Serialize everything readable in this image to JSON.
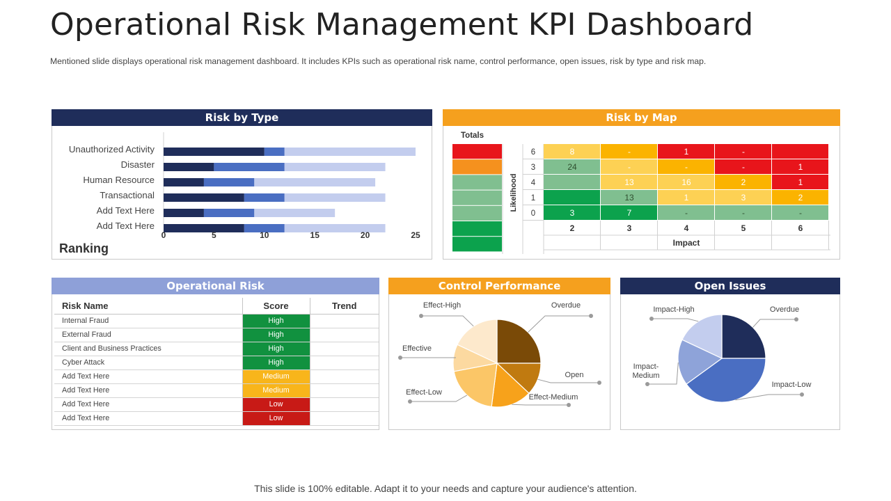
{
  "header": {
    "title": "Operational Risk Management KPI Dashboard",
    "subtitle": "Mentioned slide displays operational risk management dashboard. It includes KPIs such as operational risk name, control performance, open issues, risk by type and risk map."
  },
  "footer": "This slide is 100% editable. Adapt it to your needs and capture your audience's attention.",
  "colors": {
    "navy": "#1f2d5a",
    "orange": "#f5a01e",
    "periwinkle": "#8ea0d8",
    "high_green": "#11913f",
    "medium_amber": "#f8b51b",
    "low_red": "#c81a16"
  },
  "panels": {
    "risk_by_type": "Risk by Type",
    "risk_by_map": "Risk by Map",
    "operational_risk": "Operational Risk",
    "control_performance": "Control Performance",
    "open_issues": "Open Issues"
  },
  "operational_risk": {
    "headers": [
      "Risk Name",
      "Score",
      "Trend"
    ],
    "rows": [
      {
        "name": "Internal Fraud",
        "score": "High",
        "color": "#11913f"
      },
      {
        "name": "External Fraud",
        "score": "High",
        "color": "#11913f"
      },
      {
        "name": "Client and Business Practices",
        "score": "High",
        "color": "#11913f"
      },
      {
        "name": "Cyber Attack",
        "score": "High",
        "color": "#11913f"
      },
      {
        "name": "Add Text Here",
        "score": "Medium",
        "color": "#f8b51b"
      },
      {
        "name": "Add Text Here",
        "score": "Medium",
        "color": "#f8b51b"
      },
      {
        "name": "Add Text Here",
        "score": "Low",
        "color": "#c81a16"
      },
      {
        "name": "Add Text Here",
        "score": "Low",
        "color": "#c81a16"
      }
    ]
  },
  "chart_data": [
    {
      "type": "bar",
      "orientation": "horizontal",
      "stacked": true,
      "title": "Risk by Type",
      "categories": [
        "Unauthorized Activity",
        "Disaster",
        "Human Resource",
        "Transactional",
        "Add Text Here",
        "Add Text Here"
      ],
      "series": [
        {
          "values": [
            10,
            5,
            4,
            8,
            4,
            8
          ],
          "color": "#1f2d5a"
        },
        {
          "values": [
            2,
            7,
            5,
            4,
            5,
            4
          ],
          "color": "#4a6ec2"
        },
        {
          "values": [
            13,
            10,
            12,
            10,
            8,
            10
          ],
          "color": "#c3cdee"
        }
      ],
      "xlim": [
        0,
        25
      ],
      "xticks": [
        0,
        5,
        10,
        15,
        20,
        25
      ],
      "annotation": "Ranking"
    },
    {
      "type": "heatmap",
      "title": "Risk by Map",
      "totals_label": "Totals",
      "totals_colors": [
        "#e8151b",
        "#f5911e",
        "#80bf90",
        "#80bf90",
        "#80bf90",
        "#0ca24d",
        "#0ca24d"
      ],
      "ylabel": "Likelihood",
      "xlabel": "Impact",
      "y_labels": [
        "6",
        "3",
        "4",
        "1",
        "0"
      ],
      "x_labels": [
        "2",
        "3",
        "4",
        "5",
        "6"
      ],
      "cells": [
        [
          {
            "v": "8",
            "c": "#fdd154"
          },
          {
            "v": "-",
            "c": "#fbb300"
          },
          {
            "v": "1",
            "c": "#e8151b"
          },
          {
            "v": "-",
            "c": "#e8151b"
          },
          {
            "v": "",
            "c": "#e8151b"
          }
        ],
        [
          {
            "v": "24",
            "c": "#80bf90"
          },
          {
            "v": "-",
            "c": "#fdd154"
          },
          {
            "v": "-",
            "c": "#fbb300"
          },
          {
            "v": "-",
            "c": "#e8151b"
          },
          {
            "v": "1",
            "c": "#e8151b"
          }
        ],
        [
          {
            "v": "",
            "c": "#80bf90"
          },
          {
            "v": "13",
            "c": "#fdd154"
          },
          {
            "v": "16",
            "c": "#fdd154"
          },
          {
            "v": "2",
            "c": "#fbb300"
          },
          {
            "v": "1",
            "c": "#e8151b"
          }
        ],
        [
          {
            "v": "",
            "c": "#0ca24d"
          },
          {
            "v": "13",
            "c": "#80bf90"
          },
          {
            "v": "1",
            "c": "#fdd154"
          },
          {
            "v": "3",
            "c": "#fdd154"
          },
          {
            "v": "2",
            "c": "#fbb300"
          }
        ],
        [
          {
            "v": "3",
            "c": "#0ca24d"
          },
          {
            "v": "7",
            "c": "#0ca24d"
          },
          {
            "v": "-",
            "c": "#80bf90"
          },
          {
            "v": "-",
            "c": "#80bf90"
          },
          {
            "v": "-",
            "c": "#80bf90"
          }
        ]
      ]
    },
    {
      "type": "pie",
      "title": "Control Performance",
      "slices": [
        {
          "label": "Overdue",
          "value": 25,
          "color": "#7a4a07"
        },
        {
          "label": "Open",
          "value": 12,
          "color": "#c07a10"
        },
        {
          "label": "Effect-Medium",
          "value": 15,
          "color": "#f7a21b"
        },
        {
          "label": "Effect-Low",
          "value": 20,
          "color": "#fbc667"
        },
        {
          "label": "Effective",
          "value": 10,
          "color": "#fcd9a0"
        },
        {
          "label": "Effect-High",
          "value": 18,
          "color": "#fde9cc"
        }
      ]
    },
    {
      "type": "pie",
      "title": "Open Issues",
      "slices": [
        {
          "label": "Overdue",
          "value": 25,
          "color": "#1f2d5a"
        },
        {
          "label": "Impact-Low",
          "value": 40,
          "color": "#4a6ec2"
        },
        {
          "label": "Impact-Medium",
          "value": 17,
          "color": "#8ea3d9"
        },
        {
          "label": "Impact-High",
          "value": 18,
          "color": "#c3cdee"
        }
      ]
    }
  ]
}
